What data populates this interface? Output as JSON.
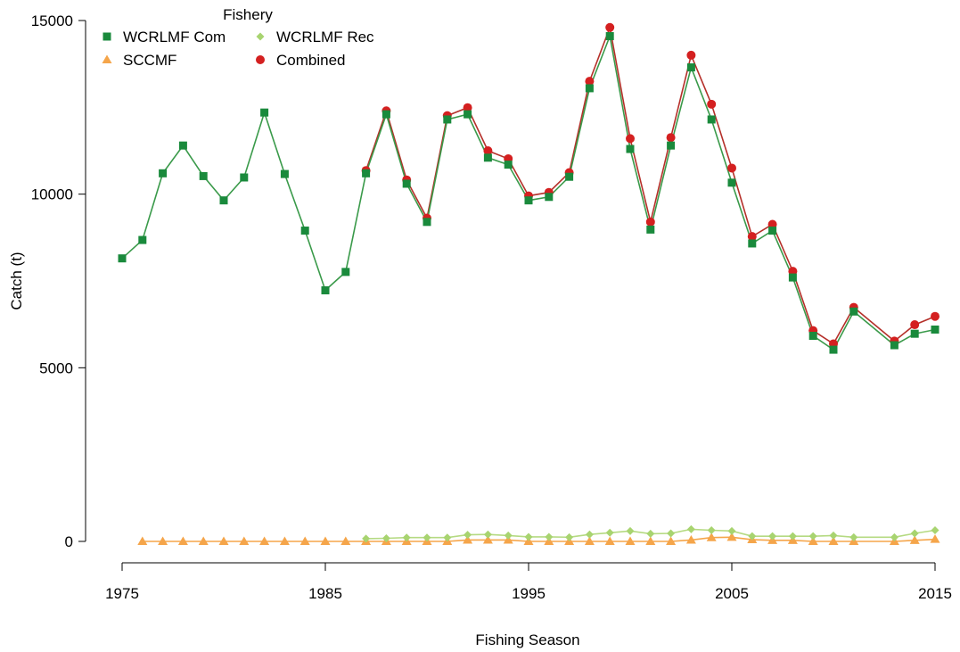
{
  "chart_data": {
    "type": "line",
    "title": "",
    "xlabel": "Fishing Season",
    "ylabel": "Catch (t)",
    "xlim": [
      1975,
      2015
    ],
    "ylim": [
      0,
      15000
    ],
    "x_ticks": [
      1975,
      1985,
      1995,
      2005,
      2015
    ],
    "y_ticks": [
      0,
      5000,
      10000,
      15000
    ],
    "grid": false,
    "legend": {
      "title": "Fishery",
      "placement": "top-left",
      "columns": 2
    },
    "series": [
      {
        "name": "WCRLMF Com",
        "color": "#1a8a3c",
        "line_color": "#3a9a4a",
        "marker": "square",
        "points": [
          [
            1975,
            8150
          ],
          [
            1976,
            8680
          ],
          [
            1977,
            10600
          ],
          [
            1978,
            11400
          ],
          [
            1979,
            10520
          ],
          [
            1980,
            9820
          ],
          [
            1981,
            10480
          ],
          [
            1982,
            12350
          ],
          [
            1983,
            10580
          ],
          [
            1984,
            8950
          ],
          [
            1985,
            7230
          ],
          [
            1986,
            7760
          ],
          [
            1987,
            10600
          ],
          [
            1988,
            12300
          ],
          [
            1989,
            10300
          ],
          [
            1990,
            9200
          ],
          [
            1991,
            12150
          ],
          [
            1992,
            12300
          ],
          [
            1993,
            11050
          ],
          [
            1994,
            10850
          ],
          [
            1995,
            9820
          ],
          [
            1996,
            9920
          ],
          [
            1997,
            10500
          ],
          [
            1998,
            13050
          ],
          [
            1999,
            14550
          ],
          [
            2000,
            11300
          ],
          [
            2001,
            8980
          ],
          [
            2002,
            11400
          ],
          [
            2003,
            13650
          ],
          [
            2004,
            12150
          ],
          [
            2005,
            10330
          ],
          [
            2006,
            8580
          ],
          [
            2007,
            8950
          ],
          [
            2008,
            7600
          ],
          [
            2009,
            5920
          ],
          [
            2010,
            5520
          ],
          [
            2011,
            6620
          ],
          [
            2013,
            5650
          ],
          [
            2014,
            5980
          ],
          [
            2015,
            6100
          ]
        ]
      },
      {
        "name": "WCRLMF Rec",
        "color": "#a8d470",
        "line_color": "#b5da82",
        "marker": "diamond",
        "points": [
          [
            1987,
            80
          ],
          [
            1988,
            90
          ],
          [
            1989,
            110
          ],
          [
            1990,
            110
          ],
          [
            1991,
            110
          ],
          [
            1992,
            190
          ],
          [
            1993,
            200
          ],
          [
            1994,
            170
          ],
          [
            1995,
            130
          ],
          [
            1996,
            130
          ],
          [
            1997,
            120
          ],
          [
            1998,
            200
          ],
          [
            1999,
            250
          ],
          [
            2000,
            300
          ],
          [
            2001,
            220
          ],
          [
            2002,
            230
          ],
          [
            2003,
            350
          ],
          [
            2004,
            320
          ],
          [
            2005,
            300
          ],
          [
            2006,
            150
          ],
          [
            2007,
            150
          ],
          [
            2008,
            150
          ],
          [
            2009,
            150
          ],
          [
            2010,
            170
          ],
          [
            2011,
            120
          ],
          [
            2013,
            120
          ],
          [
            2014,
            230
          ],
          [
            2015,
            320
          ]
        ]
      },
      {
        "name": "SCCMF",
        "color": "#f5a54a",
        "line_color": "#f5a54a",
        "marker": "triangle",
        "points": [
          [
            1976,
            0
          ],
          [
            1977,
            0
          ],
          [
            1978,
            0
          ],
          [
            1979,
            0
          ],
          [
            1980,
            0
          ],
          [
            1981,
            0
          ],
          [
            1982,
            0
          ],
          [
            1983,
            0
          ],
          [
            1984,
            0
          ],
          [
            1985,
            0
          ],
          [
            1986,
            0
          ],
          [
            1987,
            0
          ],
          [
            1988,
            0
          ],
          [
            1989,
            0
          ],
          [
            1990,
            0
          ],
          [
            1991,
            0
          ],
          [
            1992,
            40
          ],
          [
            1993,
            40
          ],
          [
            1994,
            40
          ],
          [
            1995,
            0
          ],
          [
            1996,
            0
          ],
          [
            1997,
            0
          ],
          [
            1998,
            0
          ],
          [
            1999,
            0
          ],
          [
            2000,
            0
          ],
          [
            2001,
            0
          ],
          [
            2002,
            0
          ],
          [
            2003,
            40
          ],
          [
            2004,
            110
          ],
          [
            2005,
            120
          ],
          [
            2006,
            50
          ],
          [
            2007,
            30
          ],
          [
            2008,
            30
          ],
          [
            2009,
            0
          ],
          [
            2010,
            0
          ],
          [
            2011,
            0
          ],
          [
            2013,
            0
          ],
          [
            2014,
            30
          ],
          [
            2015,
            60
          ]
        ]
      },
      {
        "name": "Combined",
        "color": "#d42020",
        "line_color": "#b5302a",
        "marker": "circle",
        "points": [
          [
            1987,
            10680
          ],
          [
            1988,
            12400
          ],
          [
            1989,
            10410
          ],
          [
            1990,
            9310
          ],
          [
            1991,
            12260
          ],
          [
            1992,
            12490
          ],
          [
            1993,
            11250
          ],
          [
            1994,
            11020
          ],
          [
            1995,
            9950
          ],
          [
            1996,
            10050
          ],
          [
            1997,
            10620
          ],
          [
            1998,
            13250
          ],
          [
            1999,
            14800
          ],
          [
            2000,
            11600
          ],
          [
            2001,
            9200
          ],
          [
            2002,
            11630
          ],
          [
            2003,
            14000
          ],
          [
            2004,
            12590
          ],
          [
            2005,
            10750
          ],
          [
            2006,
            8780
          ],
          [
            2007,
            9130
          ],
          [
            2008,
            7780
          ],
          [
            2009,
            6070
          ],
          [
            2010,
            5690
          ],
          [
            2011,
            6740
          ],
          [
            2013,
            5770
          ],
          [
            2014,
            6240
          ],
          [
            2015,
            6480
          ]
        ]
      }
    ]
  }
}
